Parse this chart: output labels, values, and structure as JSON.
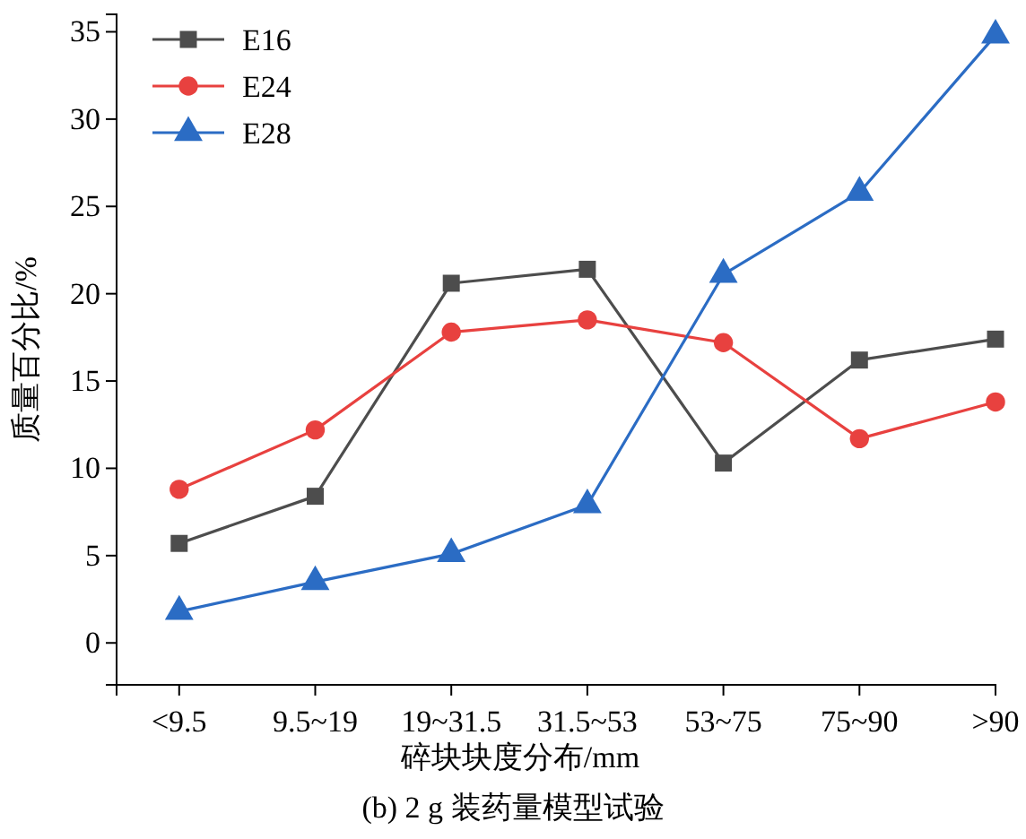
{
  "chart_data": {
    "type": "line",
    "xlabel": "碎块块度分布/mm",
    "ylabel": "质量百分比/%",
    "annotations": [
      "(b) 2 g 装药量模型试验"
    ],
    "categories": [
      "<9.5",
      "9.5~19",
      "19~31.5",
      "31.5~53",
      "53~75",
      "75~90",
      ">90"
    ],
    "ylim": [
      -2.4,
      36
    ],
    "yticks": [
      0,
      5,
      10,
      15,
      20,
      25,
      30,
      35
    ],
    "grid": false,
    "legend": "top left",
    "line_style": "solid",
    "series": [
      {
        "name": "E16",
        "color": "#4d4d4d",
        "marker": "square",
        "values": [
          5.7,
          8.4,
          20.6,
          21.4,
          10.3,
          16.2,
          17.4
        ]
      },
      {
        "name": "E24",
        "color": "#e8413f",
        "marker": "circle",
        "values": [
          8.8,
          12.2,
          17.8,
          18.5,
          17.2,
          11.7,
          13.8
        ]
      },
      {
        "name": "E28",
        "color": "#2b6cc4",
        "marker": "triangle",
        "values": [
          1.8,
          3.5,
          5.1,
          7.9,
          21.1,
          25.8,
          34.8
        ]
      }
    ]
  }
}
